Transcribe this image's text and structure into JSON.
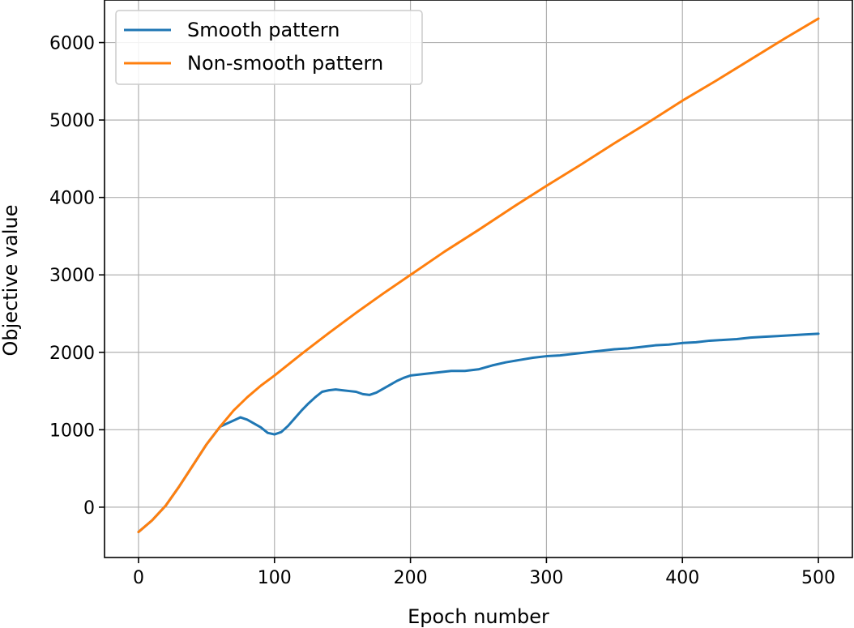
{
  "chart_data": {
    "type": "line",
    "title": "",
    "xlabel": "Epoch number",
    "ylabel": "Objective value",
    "xlim": [
      -25,
      525
    ],
    "ylim": [
      -650,
      6550
    ],
    "xticks": [
      0,
      100,
      200,
      300,
      400,
      500
    ],
    "yticks": [
      0,
      1000,
      2000,
      3000,
      4000,
      5000,
      6000
    ],
    "grid": true,
    "legend_position": "top-left",
    "series": [
      {
        "name": "Smooth pattern",
        "color": "#1f77b4",
        "x": [
          0,
          10,
          20,
          30,
          40,
          50,
          60,
          70,
          75,
          80,
          85,
          90,
          95,
          100,
          105,
          110,
          115,
          120,
          125,
          130,
          135,
          140,
          145,
          150,
          155,
          160,
          165,
          170,
          175,
          180,
          185,
          190,
          195,
          200,
          210,
          220,
          230,
          240,
          250,
          260,
          270,
          280,
          290,
          300,
          310,
          320,
          330,
          340,
          350,
          360,
          370,
          380,
          390,
          400,
          410,
          420,
          430,
          440,
          450,
          460,
          470,
          480,
          490,
          500
        ],
        "y": [
          -320,
          -170,
          20,
          270,
          540,
          810,
          1040,
          1120,
          1160,
          1130,
          1080,
          1030,
          960,
          940,
          970,
          1050,
          1150,
          1250,
          1340,
          1420,
          1490,
          1510,
          1520,
          1510,
          1500,
          1490,
          1460,
          1450,
          1480,
          1530,
          1580,
          1630,
          1670,
          1700,
          1720,
          1740,
          1760,
          1760,
          1780,
          1830,
          1870,
          1900,
          1930,
          1950,
          1960,
          1980,
          2000,
          2020,
          2040,
          2050,
          2070,
          2090,
          2100,
          2120,
          2130,
          2150,
          2160,
          2170,
          2190,
          2200,
          2210,
          2220,
          2230,
          2240
        ]
      },
      {
        "name": "Non-smooth pattern",
        "color": "#ff7f0e",
        "x": [
          0,
          10,
          20,
          30,
          40,
          50,
          60,
          70,
          80,
          90,
          100,
          120,
          140,
          160,
          180,
          200,
          225,
          250,
          275,
          300,
          325,
          350,
          375,
          400,
          425,
          450,
          475,
          500
        ],
        "y": [
          -320,
          -170,
          20,
          270,
          540,
          810,
          1040,
          1250,
          1420,
          1570,
          1700,
          1980,
          2250,
          2510,
          2760,
          3000,
          3300,
          3580,
          3870,
          4150,
          4420,
          4700,
          4970,
          5250,
          5510,
          5780,
          6050,
          6310
        ]
      }
    ]
  }
}
